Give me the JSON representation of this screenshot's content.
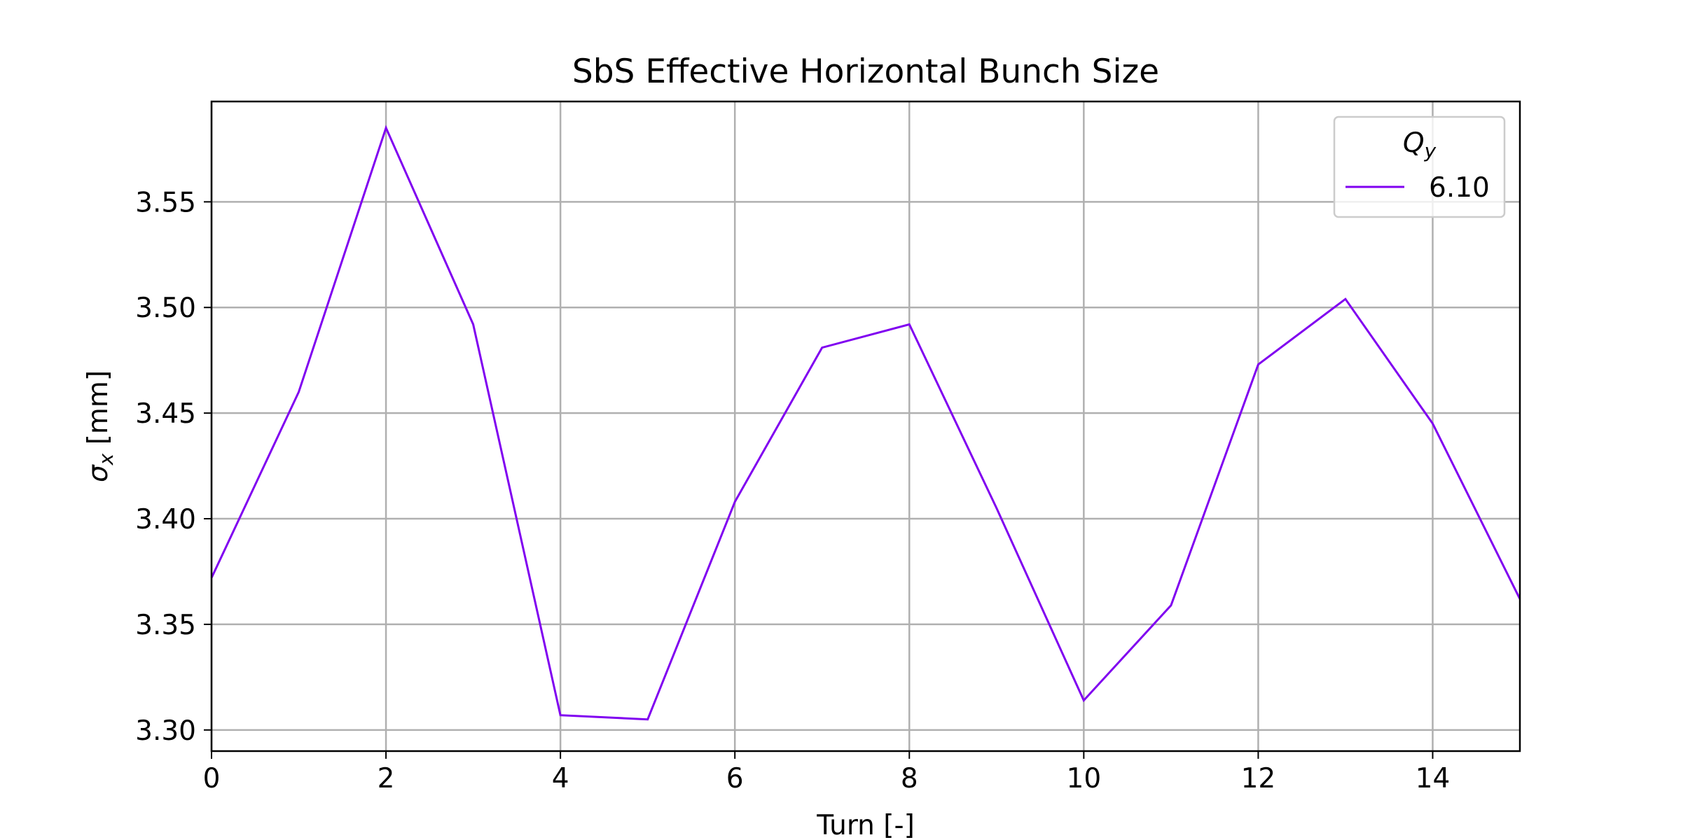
{
  "chart_data": {
    "type": "line",
    "title": "SbS Effective Horizontal Bunch Size",
    "xlabel": "Turn [-]",
    "ylabel": {
      "main": "σ",
      "sub": "x",
      "unit": " [mm]"
    },
    "xlim": [
      0,
      15
    ],
    "ylim": [
      3.29,
      3.5975
    ],
    "xticks": [
      0,
      2,
      4,
      6,
      8,
      10,
      12,
      14
    ],
    "yticks": [
      3.3,
      3.35,
      3.4,
      3.45,
      3.5,
      3.55
    ],
    "ytick_labels": [
      "3.30",
      "3.35",
      "3.40",
      "3.45",
      "3.50",
      "3.55"
    ],
    "grid": true,
    "legend": {
      "title": {
        "main": "Q",
        "sub": "y"
      },
      "placement": "top-right"
    },
    "series": [
      {
        "name": "6.10",
        "color": "#8000f0",
        "x": [
          0,
          1,
          2,
          3,
          4,
          5,
          6,
          7,
          8,
          9,
          10,
          11,
          12,
          13,
          14,
          15
        ],
        "y": [
          3.372,
          3.46,
          3.585,
          3.492,
          3.307,
          3.305,
          3.408,
          3.481,
          3.492,
          3.405,
          3.314,
          3.359,
          3.473,
          3.504,
          3.445,
          3.362
        ]
      }
    ]
  }
}
